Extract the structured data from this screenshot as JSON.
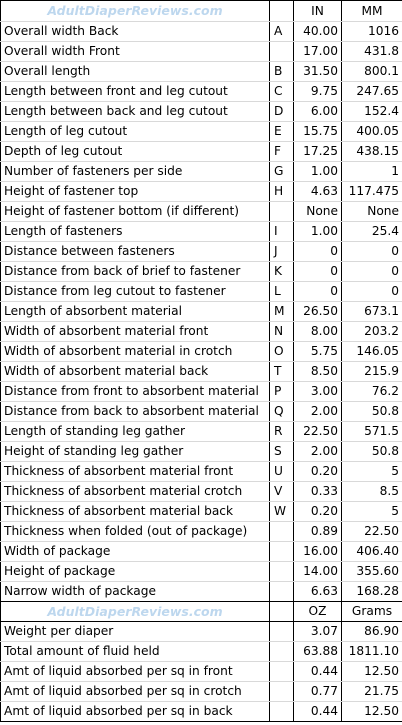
{
  "brand": "AdultDiaperReviews.com",
  "units_dim": {
    "in": "IN",
    "mm": "MM"
  },
  "units_weight": {
    "oz": "OZ",
    "grams": "Grams"
  },
  "dimensions": [
    {
      "label": "Overall width Back",
      "letter": "A",
      "in": "40.00",
      "mm": "1016"
    },
    {
      "label": "Overall width Front",
      "letter": "",
      "in": "17.00",
      "mm": "431.8"
    },
    {
      "label": "Overall length",
      "letter": "B",
      "in": "31.50",
      "mm": "800.1"
    },
    {
      "label": "Length between front and leg cutout",
      "letter": "C",
      "in": "9.75",
      "mm": "247.65"
    },
    {
      "label": "Length between back and leg cutout",
      "letter": "D",
      "in": "6.00",
      "mm": "152.4"
    },
    {
      "label": "Length of leg cutout",
      "letter": "E",
      "in": "15.75",
      "mm": "400.05"
    },
    {
      "label": "Depth of leg cutout",
      "letter": "F",
      "in": "17.25",
      "mm": "438.15"
    },
    {
      "label": "Number of fasteners per side",
      "letter": "G",
      "in": "1.00",
      "mm": "1"
    },
    {
      "label": "Height of fastener top",
      "letter": "H",
      "in": "4.63",
      "mm": "117.475"
    },
    {
      "label": "Height of fastener bottom (if different)",
      "letter": "",
      "in": "None",
      "mm": "None"
    },
    {
      "label": "Length of fasteners",
      "letter": "I",
      "in": "1.00",
      "mm": "25.4"
    },
    {
      "label": "Distance between fasteners",
      "letter": "J",
      "in": "0",
      "mm": "0"
    },
    {
      "label": "Distance from back of brief to fastener",
      "letter": "K",
      "in": "0",
      "mm": "0"
    },
    {
      "label": "Distance from leg cutout to fastener",
      "letter": "L",
      "in": "0",
      "mm": "0"
    },
    {
      "label": "Length of absorbent material",
      "letter": "M",
      "in": "26.50",
      "mm": "673.1"
    },
    {
      "label": "Width of absorbent material front",
      "letter": "N",
      "in": "8.00",
      "mm": "203.2"
    },
    {
      "label": "Width of absorbent material in crotch",
      "letter": "O",
      "in": "5.75",
      "mm": "146.05"
    },
    {
      "label": "Width of absorbent material back",
      "letter": "T",
      "in": "8.50",
      "mm": "215.9"
    },
    {
      "label": "Distance from front to absorbent material",
      "letter": "P",
      "in": "3.00",
      "mm": "76.2"
    },
    {
      "label": "Distance from back to absorbent material",
      "letter": "Q",
      "in": "2.00",
      "mm": "50.8"
    },
    {
      "label": "Length of standing leg gather",
      "letter": "R",
      "in": "22.50",
      "mm": "571.5"
    },
    {
      "label": "Height of standing leg gather",
      "letter": "S",
      "in": "2.00",
      "mm": "50.8"
    },
    {
      "label": "Thickness of absorbent material front",
      "letter": "U",
      "in": "0.20",
      "mm": "5"
    },
    {
      "label": "Thickness of absorbent material crotch",
      "letter": "V",
      "in": "0.33",
      "mm": "8.5"
    },
    {
      "label": "Thickness of absorbent material back",
      "letter": "W",
      "in": "0.20",
      "mm": "5"
    },
    {
      "label": "Thickness when folded (out of package)",
      "letter": "",
      "in": "0.89",
      "mm": "22.50"
    },
    {
      "label": "Width of package",
      "letter": "",
      "in": "16.00",
      "mm": "406.40"
    },
    {
      "label": "Height of package",
      "letter": "",
      "in": "14.00",
      "mm": "355.60"
    },
    {
      "label": "Narrow width of package",
      "letter": "",
      "in": "6.63",
      "mm": "168.28"
    }
  ],
  "weights": [
    {
      "label": "Weight per diaper",
      "letter": "",
      "oz": "3.07",
      "grams": "86.90"
    },
    {
      "label": "Total amount of fluid held",
      "letter": "",
      "oz": "63.88",
      "grams": "1811.10"
    },
    {
      "label": "Amt of liquid absorbed per sq in front",
      "letter": "",
      "oz": "0.44",
      "grams": "12.50"
    },
    {
      "label": "Amt of liquid absorbed per sq in crotch",
      "letter": "",
      "oz": "0.77",
      "grams": "21.75"
    },
    {
      "label": "Amt of liquid absorbed per sq in back",
      "letter": "",
      "oz": "0.44",
      "grams": "12.50"
    }
  ],
  "colors": {
    "brand": "#bdd7ee",
    "gridline": "#d9d9d9",
    "border": "#000000"
  }
}
